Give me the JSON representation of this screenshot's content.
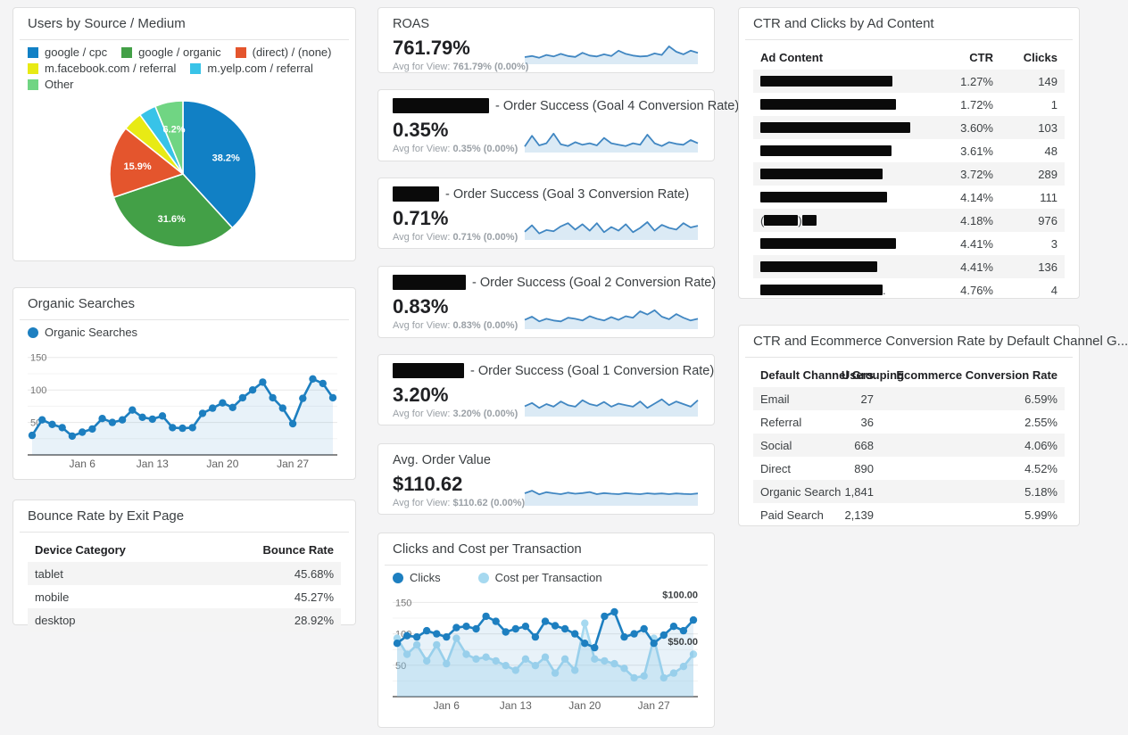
{
  "page": {
    "background": "#f4f4f5",
    "card_border": "#e0e0e0"
  },
  "theme": {
    "blue": "#1d7fc0",
    "light_blue": "#a6d9f0",
    "green": "#43a047",
    "orange": "#e4552d",
    "yellow": "#e8ea14",
    "cyan": "#38c3e8",
    "light_green": "#70d583",
    "spark_line": "#4187c2",
    "axis_text": "#757575",
    "tick_text": "#616161"
  },
  "cards": {
    "pie_card": {
      "title": "Users by Source / Medium"
    },
    "organic_card": {
      "title": "Organic Searches"
    },
    "bounce_card": {
      "title": "Bounce Rate by Exit Page",
      "columns": [
        {
          "label": "Device Category",
          "align": "left"
        },
        {
          "label": "Bounce Rate",
          "align": "right",
          "width": 110
        }
      ],
      "rows": [
        [
          "tablet",
          "45.68%"
        ],
        [
          "mobile",
          "45.27%"
        ],
        [
          "desktop",
          "28.92%"
        ]
      ]
    },
    "scorecards": [
      {
        "title_segments": [
          {
            "t": "text",
            "v": "ROAS"
          }
        ],
        "value": "761.79%",
        "avg_prefix": "Avg for View:",
        "avg_value": "761.79% (0.00%)",
        "spark_id": "spark_roas"
      },
      {
        "title_segments": [
          {
            "t": "bar",
            "w": 108
          },
          {
            "t": "text",
            "v": "- Order Success (Goal 4 Conversion Rate)"
          }
        ],
        "value": "0.35%",
        "avg_prefix": "Avg for View:",
        "avg_value": "0.35% (0.00%)",
        "spark_id": "spark_goal4"
      },
      {
        "title_segments": [
          {
            "t": "bar",
            "w": 52
          },
          {
            "t": "text",
            "v": "- Order Success (Goal 3 Conversion Rate)"
          }
        ],
        "value": "0.71%",
        "avg_prefix": "Avg for View:",
        "avg_value": "0.71% (0.00%)",
        "spark_id": "spark_goal3"
      },
      {
        "title_segments": [
          {
            "t": "bar",
            "w": 82
          },
          {
            "t": "text",
            "v": "- Order Success (Goal 2 Conversion Rate)"
          }
        ],
        "value": "0.83%",
        "avg_prefix": "Avg for View:",
        "avg_value": "0.83% (0.00%)",
        "spark_id": "spark_goal2"
      },
      {
        "title_segments": [
          {
            "t": "bar",
            "w": 80
          },
          {
            "t": "text",
            "v": "- Order Success (Goal 1 Conversion Rate)"
          }
        ],
        "value": "3.20%",
        "avg_prefix": "Avg for View:",
        "avg_value": "3.20% (0.00%)",
        "spark_id": "spark_goal1"
      },
      {
        "title_segments": [
          {
            "t": "text",
            "v": "Avg. Order Value"
          }
        ],
        "value": "$110.62",
        "avg_prefix": "Avg for View:",
        "avg_value": "$110.62 (0.00%)",
        "spark_id": "spark_aov"
      }
    ],
    "clicks_card": {
      "title": "Clicks and Cost per Transaction"
    },
    "ad_table": {
      "title": "CTR and Clicks by Ad Content",
      "columns": [
        {
          "label": "Ad Content",
          "align": "left"
        },
        {
          "label": "CTR",
          "align": "right",
          "width": 64
        },
        {
          "label": "Clicks",
          "align": "right",
          "width": 56
        }
      ],
      "rows": [
        [
          [
            {
              "t": "bar",
              "w": 148
            }
          ],
          "1.27%",
          "149"
        ],
        [
          [
            {
              "t": "bar",
              "w": 152
            }
          ],
          "1.72%",
          "1"
        ],
        [
          [
            {
              "t": "bar",
              "w": 168
            }
          ],
          "3.60%",
          "103"
        ],
        [
          [
            {
              "t": "bar",
              "w": 147
            }
          ],
          "3.61%",
          "48"
        ],
        [
          [
            {
              "t": "bar",
              "w": 137
            }
          ],
          "3.72%",
          "289"
        ],
        [
          [
            {
              "t": "bar",
              "w": 142
            }
          ],
          "4.14%",
          "111"
        ],
        [
          [
            {
              "t": "text",
              "v": "("
            },
            {
              "t": "bar",
              "w": 38
            },
            {
              "t": "text",
              "v": ")"
            },
            {
              "t": "bar",
              "w": 16
            }
          ],
          "4.18%",
          "976"
        ],
        [
          [
            {
              "t": "bar",
              "w": 152
            }
          ],
          "4.41%",
          "3"
        ],
        [
          [
            {
              "t": "bar",
              "w": 131
            }
          ],
          "4.41%",
          "136"
        ],
        [
          [
            {
              "t": "bar",
              "w": 137
            },
            {
              "t": "text",
              "v": "."
            }
          ],
          "4.76%",
          "4"
        ]
      ]
    },
    "channel_table": {
      "title": "CTR and Ecommerce Conversion Rate by Default Channel G...",
      "columns": [
        {
          "label": "Default Channel Grouping",
          "align": "left"
        },
        {
          "label": "Users",
          "align": "right",
          "width": 66
        },
        {
          "label": "Ecommerce Conversion Rate",
          "align": "right",
          "width": 190
        }
      ],
      "rows": [
        [
          "Email",
          "27",
          "6.59%"
        ],
        [
          "Referral",
          "36",
          "2.55%"
        ],
        [
          "Social",
          "668",
          "4.06%"
        ],
        [
          "Direct",
          "890",
          "4.52%"
        ],
        [
          "Organic Search",
          "1,841",
          "5.18%"
        ],
        [
          "Paid Search",
          "2,139",
          "5.99%"
        ]
      ]
    }
  },
  "chart_data": [
    {
      "id": "users_pie",
      "type": "pie",
      "title": "Users by Source / Medium",
      "labels": [
        "google / cpc",
        "google / organic",
        "(direct) / (none)",
        "m.facebook.com / referral",
        "m.yelp.com / referral",
        "Other"
      ],
      "values": [
        38.2,
        31.6,
        15.9,
        4.3,
        3.8,
        6.2
      ],
      "colors": [
        "#1180c5",
        "#43a047",
        "#e4552d",
        "#e8ea14",
        "#38c3e8",
        "#70d583"
      ],
      "slice_labels": [
        "38.2%",
        "31.6%",
        "15.9%",
        "",
        "",
        "6.2%"
      ],
      "legend_position": "top",
      "units": "percent"
    },
    {
      "id": "organic_line",
      "type": "line",
      "title": "Organic Searches",
      "legend": [
        {
          "name": "Organic Searches",
          "color": "#1d7fc0"
        }
      ],
      "ylim": [
        0,
        162
      ],
      "yticks": [
        50,
        100,
        150
      ],
      "grid": true,
      "x_ticks": [
        "Jan 6",
        "Jan 13",
        "Jan 20",
        "Jan 27"
      ],
      "x_tick_indices": [
        5,
        12,
        19,
        26
      ],
      "series": [
        {
          "name": "Organic Searches",
          "color": "#1d7fc0",
          "fill": "rgba(29,127,192,0.10)",
          "values": [
            30,
            54,
            47,
            42,
            29,
            35,
            40,
            56,
            50,
            54,
            69,
            58,
            55,
            60,
            42,
            41,
            42,
            64,
            72,
            80,
            73,
            88,
            100,
            112,
            88,
            72,
            48,
            87,
            117,
            110,
            88
          ]
        }
      ]
    },
    {
      "id": "clicks_cost",
      "type": "line",
      "title": "Clicks and Cost per Transaction",
      "legend": [
        {
          "name": "Clicks",
          "color": "#1d7fc0"
        },
        {
          "name": "Cost per Transaction",
          "color": "#a6d9f0"
        }
      ],
      "ylim": [
        0,
        162
      ],
      "yticks": [
        50,
        100,
        150
      ],
      "grid": true,
      "x_ticks": [
        "Jan 6",
        "Jan 13",
        "Jan 20",
        "Jan 27"
      ],
      "x_tick_indices": [
        5,
        12,
        19,
        26
      ],
      "right_axis": {
        "labels": [
          {
            "text": "$100.00",
            "at": 150
          },
          {
            "text": "$50.00",
            "at": 75
          }
        ]
      },
      "series": [
        {
          "name": "Cost per Transaction",
          "axis": "right",
          "color": "#a6d9f0",
          "fill": "rgba(166,217,240,0.35)",
          "scale": 1.5,
          "values_are_dollars": true,
          "values": [
            62,
            45,
            55,
            38,
            55,
            35,
            62,
            45,
            40,
            42,
            38,
            33,
            28,
            40,
            33,
            42,
            25,
            40,
            28,
            78,
            40,
            38,
            35,
            30,
            20,
            22,
            62,
            20,
            25,
            32,
            45
          ]
        },
        {
          "name": "Clicks",
          "axis": "left",
          "color": "#1d7fc0",
          "fill": "rgba(29,127,192,0.10)",
          "scale": 1,
          "values": [
            85,
            97,
            95,
            105,
            100,
            95,
            110,
            112,
            108,
            128,
            120,
            103,
            108,
            112,
            95,
            120,
            113,
            108,
            100,
            85,
            78,
            128,
            135,
            95,
            100,
            108,
            85,
            98,
            112,
            105,
            122
          ]
        }
      ]
    },
    {
      "id": "spark_roas",
      "type": "sparkline",
      "metric": "ROAS",
      "units": "relative",
      "values": [
        25,
        30,
        22,
        35,
        28,
        40,
        30,
        26,
        45,
        32,
        28,
        38,
        30,
        55,
        40,
        32,
        28,
        30,
        42,
        35,
        75,
        50,
        38,
        55,
        45
      ]
    },
    {
      "id": "spark_goal4",
      "type": "sparkline",
      "metric": "Goal 4 Conversion Rate",
      "units": "relative",
      "values": [
        20,
        70,
        25,
        35,
        80,
        30,
        22,
        40,
        28,
        35,
        25,
        60,
        35,
        28,
        22,
        35,
        28,
        75,
        35,
        22,
        40,
        32,
        28,
        50,
        35
      ]
    },
    {
      "id": "spark_goal3",
      "type": "sparkline",
      "metric": "Goal 3 Conversion Rate",
      "units": "relative",
      "values": [
        30,
        60,
        22,
        38,
        32,
        55,
        70,
        40,
        65,
        35,
        70,
        28,
        52,
        35,
        65,
        28,
        48,
        75,
        35,
        62,
        48,
        40,
        70,
        50,
        58
      ]
    },
    {
      "id": "spark_goal2",
      "type": "sparkline",
      "metric": "Goal 2 Conversion Rate",
      "units": "relative",
      "values": [
        35,
        50,
        28,
        40,
        32,
        28,
        45,
        40,
        32,
        52,
        40,
        32,
        48,
        35,
        52,
        45,
        75,
        60,
        80,
        50,
        38,
        62,
        45,
        32,
        40
      ]
    },
    {
      "id": "spark_goal1",
      "type": "sparkline",
      "metric": "Goal 1 Conversion Rate",
      "units": "relative",
      "values": [
        40,
        55,
        32,
        50,
        38,
        62,
        45,
        38,
        68,
        50,
        42,
        60,
        38,
        52,
        45,
        38,
        62,
        32,
        52,
        72,
        45,
        62,
        50,
        38,
        68
      ]
    },
    {
      "id": "spark_aov",
      "type": "sparkline",
      "metric": "Avg. Order Value",
      "units": "relative",
      "values": [
        50,
        62,
        45,
        55,
        50,
        46,
        53,
        48,
        51,
        56,
        46,
        51,
        48,
        46,
        51,
        48,
        46,
        50,
        47,
        49,
        46,
        49,
        47,
        46,
        49
      ]
    }
  ]
}
